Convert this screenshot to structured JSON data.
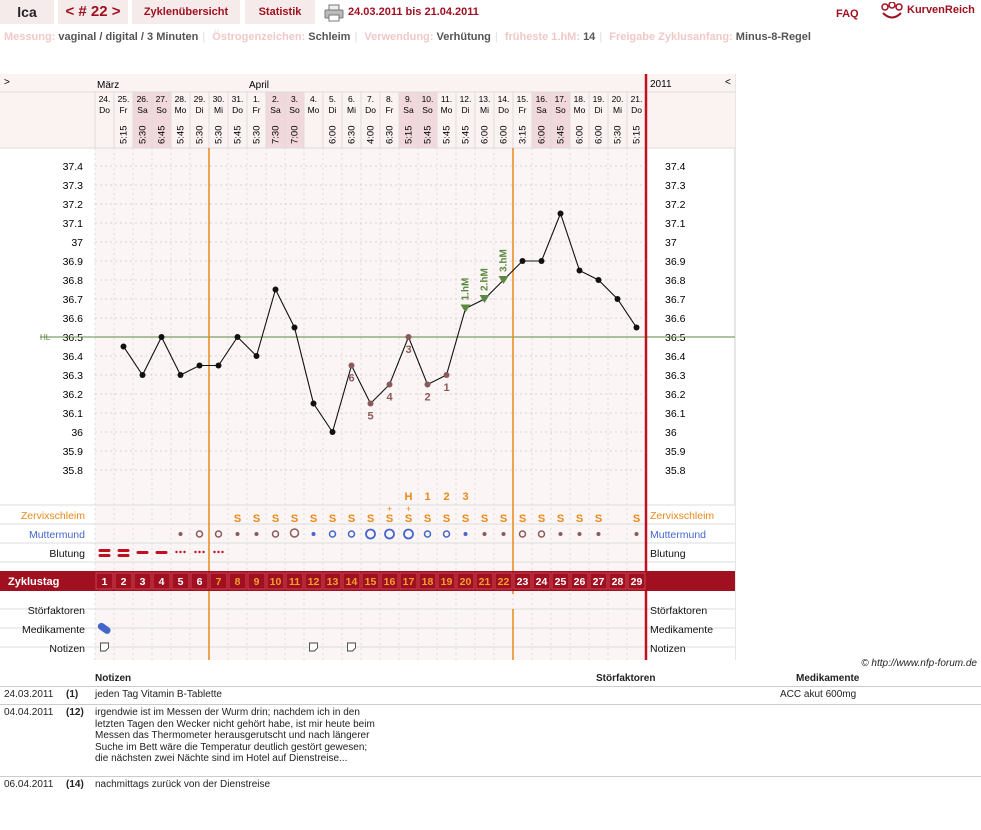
{
  "header": {
    "user": "lca",
    "cycle": "< # 22 >",
    "overview_tab": "Zyklenübersicht",
    "stats_tab": "Statistik",
    "date_range": "24.03.2011 bis 21.04.2011",
    "faq": "FAQ",
    "logo_text": "KurvenReich"
  },
  "info": [
    {
      "key": "Messung:",
      "value": "vaginal / digital / 3 Minuten"
    },
    {
      "key": "Östrogenzeichen:",
      "value": "Schleim"
    },
    {
      "key": "Verwendung:",
      "value": "Verhütung"
    },
    {
      "key": "früheste 1.hM:",
      "value": "14"
    },
    {
      "key": "Freigabe Zyklusanfang:",
      "value": "Minus-8-Regel"
    }
  ],
  "nav": {
    "left": ">",
    "right": "<",
    "year": "2011",
    "months": [
      "März",
      "April"
    ]
  },
  "days": [
    {
      "d": "24.",
      "w": "Do",
      "t": "",
      "cd": "1"
    },
    {
      "d": "25.",
      "w": "Fr",
      "t": "5:15",
      "cd": "2"
    },
    {
      "d": "26.",
      "w": "Sa",
      "t": "5:30",
      "cd": "3"
    },
    {
      "d": "27.",
      "w": "So",
      "t": "6:45",
      "cd": "4"
    },
    {
      "d": "28.",
      "w": "Mo",
      "t": "5:45",
      "cd": "5"
    },
    {
      "d": "29.",
      "w": "Di",
      "t": "5:30",
      "cd": "6"
    },
    {
      "d": "30.",
      "w": "Mi",
      "t": "5:30",
      "cd": "7"
    },
    {
      "d": "31.",
      "w": "Do",
      "t": "5:45",
      "cd": "8"
    },
    {
      "d": "1.",
      "w": "Fr",
      "t": "5:30",
      "cd": "9"
    },
    {
      "d": "2.",
      "w": "Sa",
      "t": "7:30",
      "cd": "10"
    },
    {
      "d": "3.",
      "w": "So",
      "t": "7:00",
      "cd": "11"
    },
    {
      "d": "4.",
      "w": "Mo",
      "t": "",
      "cd": "12"
    },
    {
      "d": "5.",
      "w": "Di",
      "t": "6:00",
      "cd": "13"
    },
    {
      "d": "6.",
      "w": "Mi",
      "t": "6:30",
      "cd": "14"
    },
    {
      "d": "7.",
      "w": "Do",
      "t": "4:00",
      "cd": "15"
    },
    {
      "d": "8.",
      "w": "Fr",
      "t": "6:30",
      "cd": "16"
    },
    {
      "d": "9.",
      "w": "Sa",
      "t": "5:15",
      "cd": "17"
    },
    {
      "d": "10.",
      "w": "So",
      "t": "5:45",
      "cd": "18"
    },
    {
      "d": "11.",
      "w": "Mo",
      "t": "5:45",
      "cd": "19"
    },
    {
      "d": "12.",
      "w": "Di",
      "t": "5:45",
      "cd": "20"
    },
    {
      "d": "13.",
      "w": "Mi",
      "t": "6:00",
      "cd": "21"
    },
    {
      "d": "14.",
      "w": "Do",
      "t": "6:00",
      "cd": "22"
    },
    {
      "d": "15.",
      "w": "Fr",
      "t": "3:15",
      "cd": "23"
    },
    {
      "d": "16.",
      "w": "Sa",
      "t": "6:00",
      "cd": "24"
    },
    {
      "d": "17.",
      "w": "So",
      "t": "5:45",
      "cd": "25"
    },
    {
      "d": "18.",
      "w": "Mo",
      "t": "6:00",
      "cd": "26"
    },
    {
      "d": "19.",
      "w": "Di",
      "t": "6:00",
      "cd": "27"
    },
    {
      "d": "20.",
      "w": "Mi",
      "t": "5:30",
      "cd": "28"
    },
    {
      "d": "21.",
      "w": "Do",
      "t": "5:15",
      "cd": "29"
    }
  ],
  "chart_data": {
    "type": "line",
    "x": [
      "25.",
      "26.",
      "27.",
      "28.",
      "29.",
      "30.",
      "31.",
      "1.",
      "2.",
      "3.",
      "4.",
      "5.",
      "6.",
      "7.",
      "8.",
      "9.",
      "10.",
      "11.",
      "12.",
      "13.",
      "14.",
      "15.",
      "16.",
      "17.",
      "18.",
      "19.",
      "20.",
      "21."
    ],
    "series": [
      {
        "values": [
          36.45,
          36.3,
          36.5,
          36.3,
          36.35,
          36.35,
          36.5,
          36.4,
          36.75,
          36.55,
          36.15,
          36.0,
          36.35,
          36.15,
          36.25,
          36.5,
          36.25,
          36.3,
          36.65,
          36.7,
          36.8,
          36.9,
          36.9,
          37.15,
          36.85,
          36.8,
          36.7,
          36.55
        ]
      }
    ],
    "ylim": [
      35.8,
      37.4
    ],
    "yticks": [
      "37.4",
      "37.3",
      "37.2",
      "37.1",
      "37",
      "36.9",
      "36.8",
      "36.7",
      "36.6",
      "36.5",
      "36.4",
      "36.3",
      "36.2",
      "36.1",
      "36",
      "35.9",
      "35.8"
    ],
    "hl_label": "HL",
    "hl_value": 36.5,
    "low_labels": [
      {
        "day": "6.",
        "label": "6"
      },
      {
        "day": "7.",
        "label": "5"
      },
      {
        "day": "8.",
        "label": "4"
      },
      {
        "day": "9.",
        "label": "3"
      },
      {
        "day": "10.",
        "label": "2"
      },
      {
        "day": "11.",
        "label": "1"
      }
    ],
    "high_labels": [
      {
        "day": "12.",
        "label": "1.hM"
      },
      {
        "day": "13.",
        "label": "2.hM"
      },
      {
        "day": "14.",
        "label": "3.hM"
      }
    ],
    "peak_labels": [
      {
        "day": "9.",
        "label": "H"
      },
      {
        "day": "10.",
        "label": "1"
      },
      {
        "day": "11.",
        "label": "2"
      },
      {
        "day": "12.",
        "label": "3"
      }
    ]
  },
  "rows": {
    "mucus": "Zervixschleim",
    "cervix": "Muttermund",
    "bleeding": "Blutung",
    "cycleday": "Zyklustag",
    "disturb": "Störfaktoren",
    "meds": "Medikamente",
    "notes": "Notizen"
  },
  "mucus_marks": [
    "",
    "",
    "",
    "",
    "",
    "",
    "",
    "S",
    "S",
    "S",
    "S",
    "S",
    "S",
    "S",
    "S",
    "S",
    "S",
    "S",
    "S",
    "S",
    "S",
    "S",
    "S",
    "S",
    "S",
    "S",
    "S",
    "",
    "S"
  ],
  "notes_section": {
    "copyright": "© http://www.nfp-forum.de",
    "headers": {
      "notes": "Notizen",
      "disturb": "Störfaktoren",
      "meds": "Medikamente"
    },
    "entries": [
      {
        "date": "24.03.2011",
        "day": "(1)",
        "text": "jeden Tag Vitamin B-Tablette",
        "meds": "ACC akut 600mg"
      },
      {
        "date": "04.04.2011",
        "day": "(12)",
        "text": "irgendwie ist im Messen der Wurm drin; nachdem ich in den letzten Tagen den Wecker nicht gehört habe, ist mir heute beim Messen das Thermometer herausgerutscht und nach längerer Suche im Bett wäre die Temperatur deutlich gestört gewesen; die nächsten zwei Nächte sind im Hotel auf Dienstreise...",
        "meds": ""
      },
      {
        "date": "06.04.2011",
        "day": "(14)",
        "text": "nachmittags zurück von der Dienstreise",
        "meds": ""
      }
    ]
  },
  "colors": {
    "accent": "#a01020",
    "orange": "#e8891a",
    "green": "#5a8a40",
    "blue": "#4466cc",
    "mauve": "#8b5a5a"
  }
}
